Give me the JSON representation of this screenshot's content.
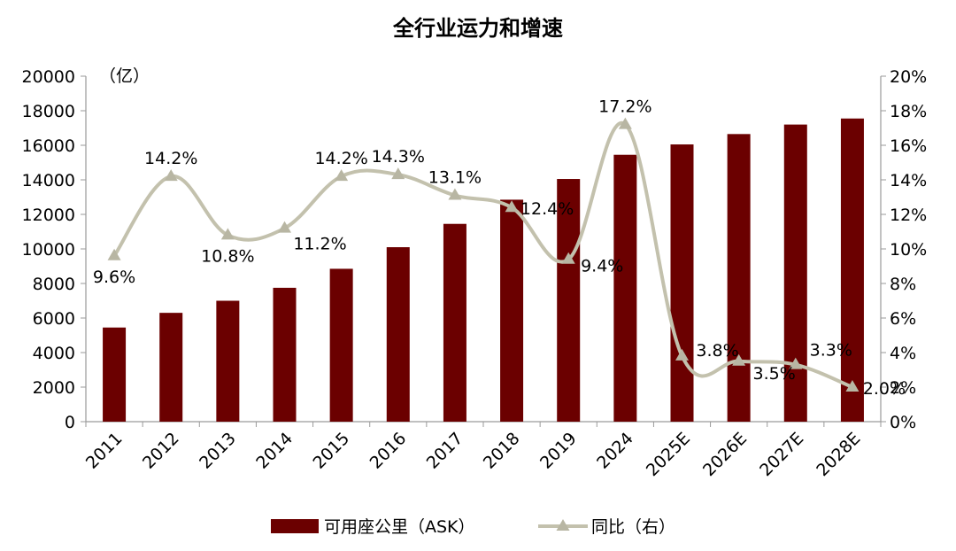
{
  "chart_data": {
    "type": "bar",
    "title": "全行业运力和增速",
    "y_left_unit": "（亿）",
    "categories": [
      "2011",
      "2012",
      "2013",
      "2014",
      "2015",
      "2016",
      "2017",
      "2018",
      "2019",
      "2024",
      "2025E",
      "2026E",
      "2027E",
      "2028E"
    ],
    "series": [
      {
        "name": "可用座公里（ASK）",
        "type": "bar",
        "axis": "left",
        "color": "#6b0000",
        "values": [
          5450,
          6300,
          7000,
          7750,
          8850,
          10100,
          11450,
          12850,
          14050,
          15450,
          16050,
          16650,
          17200,
          17550
        ]
      },
      {
        "name": "同比（右）",
        "type": "line",
        "axis": "right",
        "color": "#c3c1ad",
        "marker": "triangle",
        "smooth": true,
        "values": [
          9.6,
          14.2,
          10.8,
          11.2,
          14.2,
          14.3,
          13.1,
          12.4,
          9.4,
          17.2,
          3.8,
          3.5,
          3.3,
          2.0
        ],
        "labels": [
          "9.6%",
          "14.2%",
          "10.8%",
          "11.2%",
          "14.2%",
          "14.3%",
          "13.1%",
          "12.4%",
          "9.4%",
          "17.2%",
          "3.8%",
          "3.5%",
          "3.3%",
          "2.0%"
        ]
      }
    ],
    "y_left": {
      "min": 0,
      "max": 20000,
      "ticks": [
        "0",
        "2000",
        "4000",
        "6000",
        "8000",
        "10000",
        "12000",
        "14000",
        "16000",
        "18000",
        "20000"
      ]
    },
    "y_right": {
      "min": 0,
      "max": 20,
      "ticks": [
        "0%",
        "2%",
        "4%",
        "6%",
        "8%",
        "10%",
        "12%",
        "14%",
        "16%",
        "18%",
        "20%"
      ]
    },
    "grid": false,
    "legend_position": "bottom"
  }
}
